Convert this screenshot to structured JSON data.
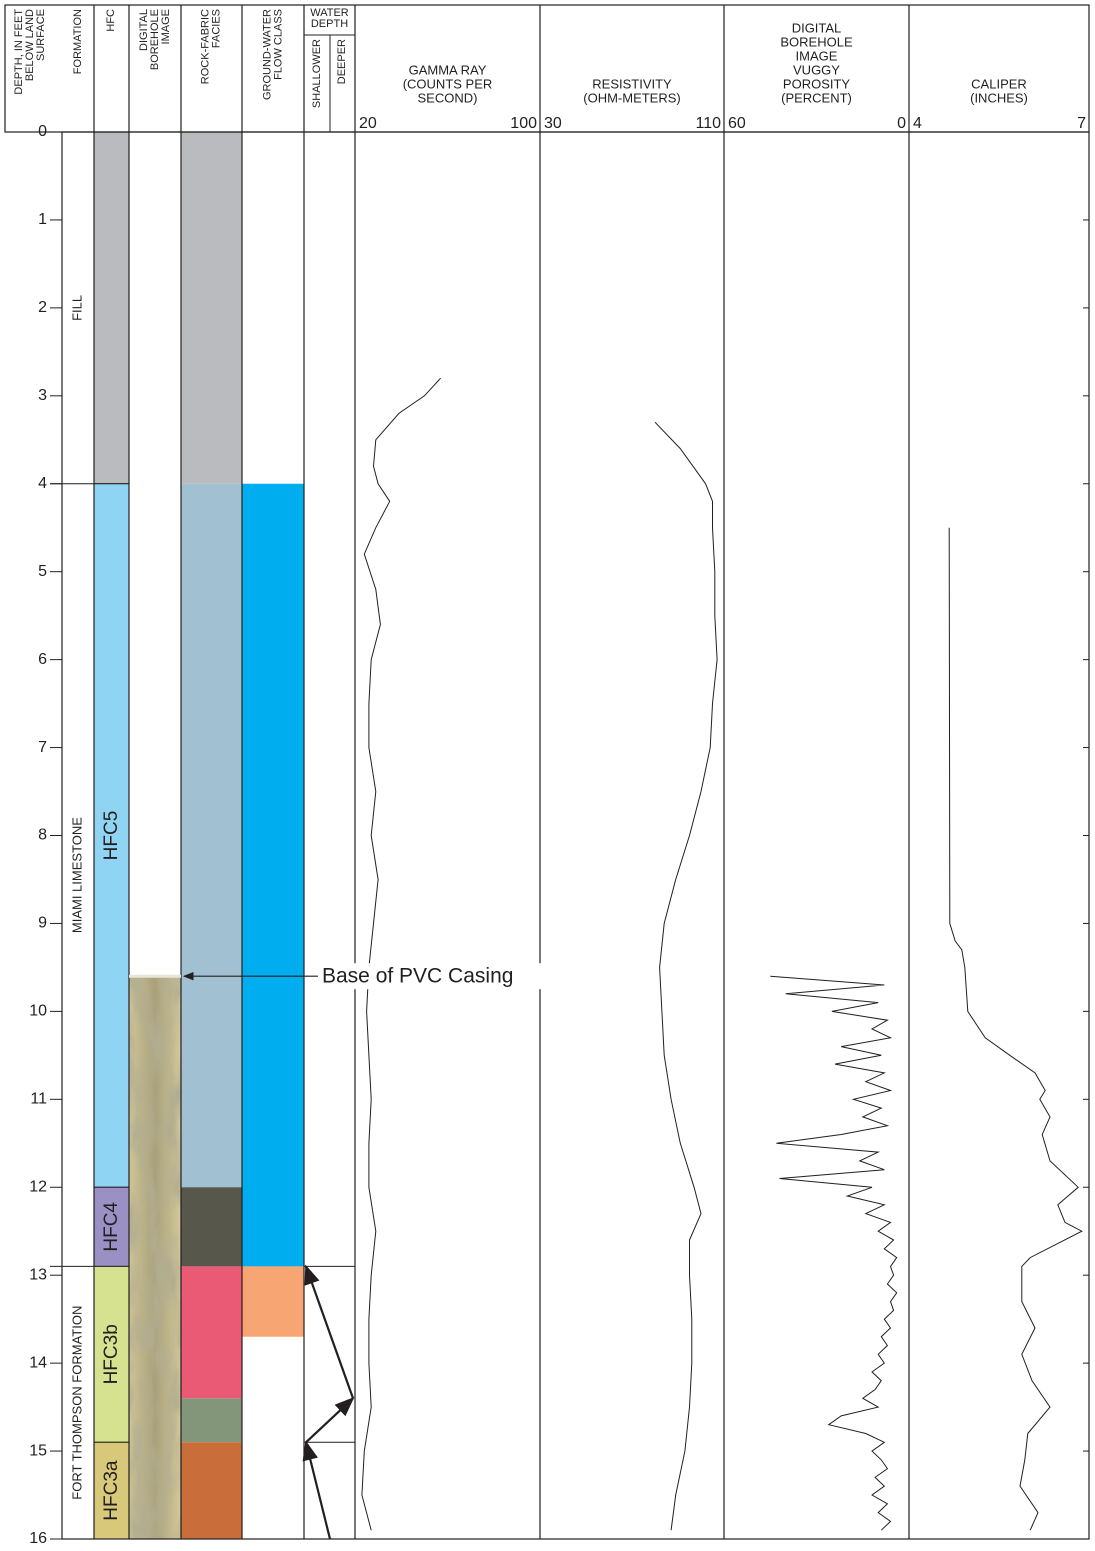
{
  "headers": {
    "depth": [
      "DEPTH, IN FEET",
      "BELOW LAND",
      "SURFACE"
    ],
    "formation": [
      "FORMATION"
    ],
    "hfc": [
      "HFC"
    ],
    "image": [
      "DIGITAL",
      "BOREHOLE",
      "IMAGE"
    ],
    "facies": [
      "ROCK-FABRIC",
      "FACIES"
    ],
    "flow_class": [
      "GROUND-WATER",
      "FLOW CLASS"
    ],
    "water_depth": [
      "WATER",
      "DEPTH"
    ],
    "shallower": "SHALLOWER",
    "deeper": "DEEPER"
  },
  "depth_axis": {
    "ylim": [
      0,
      16
    ],
    "yticks": [
      0,
      1,
      2,
      3,
      4,
      5,
      6,
      7,
      8,
      9,
      10,
      11,
      12,
      13,
      14,
      15,
      16
    ]
  },
  "columns": {
    "formation": [
      {
        "label": "FILL",
        "top": 0,
        "bottom": 4
      },
      {
        "label": "MIAMI LIMESTONE",
        "top": 4,
        "bottom": 12.9
      },
      {
        "label": "FORT THOMPSON FORMATION",
        "top": 12.9,
        "bottom": 16
      }
    ],
    "hfc": [
      {
        "color": "#b9bbbf",
        "top": 0,
        "bottom": 4
      },
      {
        "label": "HFC5",
        "color": "#8fd5f3",
        "top": 4,
        "bottom": 12
      },
      {
        "label": "HFC4",
        "color": "#9b90c4",
        "top": 12,
        "bottom": 12.9
      },
      {
        "label": "HFC3b",
        "color": "#d6e290",
        "top": 12.9,
        "bottom": 14.9
      },
      {
        "label": "HFC3a",
        "color": "#d8c97a",
        "top": 14.9,
        "bottom": 16
      }
    ],
    "borehole_image": {
      "top": 9.6,
      "bottom": 16
    },
    "facies": [
      {
        "color": "#b9bbbf",
        "top": 0,
        "bottom": 4
      },
      {
        "color": "#a1c0d2",
        "top": 4,
        "bottom": 12
      },
      {
        "color": "#57574b",
        "top": 12,
        "bottom": 12.9
      },
      {
        "color": "#ea5a74",
        "top": 12.9,
        "bottom": 14.4
      },
      {
        "color": "#84967a",
        "top": 14.4,
        "bottom": 14.9
      },
      {
        "color": "#c96d3a",
        "top": 14.9,
        "bottom": 16
      }
    ],
    "flow_class": [
      {
        "color": "#00aeef",
        "top": 4,
        "bottom": 12.9
      },
      {
        "color": "#f7a673",
        "top": 12.9,
        "bottom": 13.7
      }
    ],
    "water_depth": {
      "lines": [
        12.9,
        14.9
      ],
      "arrows": [
        16,
        14.9,
        14.4,
        12.9
      ]
    }
  },
  "annotation": {
    "text": "Base of PVC Casing",
    "depth": 9.6
  },
  "chart_data": [
    {
      "type": "line",
      "title": [
        "GAMMA RAY",
        "(COUNTS PER",
        "SECOND)"
      ],
      "xlim": [
        20,
        100
      ],
      "xticks": [
        20,
        100
      ],
      "color": "#231f20",
      "depth": [
        2.8,
        3.0,
        3.2,
        3.5,
        3.8,
        4.0,
        4.2,
        4.5,
        4.8,
        5.2,
        5.6,
        6.0,
        6.5,
        7.0,
        7.5,
        8.0,
        8.5,
        9.0,
        9.5,
        10.0,
        10.5,
        11.0,
        11.5,
        12.0,
        12.5,
        13.0,
        13.5,
        14.0,
        14.5,
        15.0,
        15.5,
        15.9
      ],
      "values": [
        57,
        50,
        39,
        29,
        28,
        30,
        35,
        29,
        24,
        29,
        31,
        27,
        26,
        26,
        29,
        27,
        30,
        28,
        26,
        25,
        26,
        27,
        26,
        26,
        29,
        27,
        26,
        26,
        27,
        24,
        23,
        27
      ]
    },
    {
      "type": "line",
      "title": [
        "RESISTIVITY",
        "(OHM-METERS)"
      ],
      "xlim": [
        30,
        110
      ],
      "xticks": [
        30,
        110
      ],
      "color": "#231f20",
      "depth": [
        3.3,
        3.6,
        4.0,
        4.2,
        4.5,
        5.0,
        5.5,
        6.0,
        6.5,
        7.0,
        7.5,
        8.0,
        8.5,
        9.0,
        9.5,
        10.0,
        10.5,
        11.0,
        11.5,
        12.0,
        12.3,
        12.6,
        13.0,
        13.5,
        14.0,
        14.5,
        15.0,
        15.5,
        15.9
      ],
      "values": [
        80,
        91,
        102,
        105,
        105,
        106,
        106,
        107,
        105,
        104,
        100,
        95,
        89,
        84,
        82,
        83,
        84,
        87,
        91,
        97,
        100,
        95,
        95,
        96,
        96,
        95,
        93,
        89,
        87
      ]
    },
    {
      "type": "line",
      "title": [
        "DIGITAL",
        "BOREHOLE",
        "IMAGE",
        "VUGGY",
        "POROSITY",
        "(PERCENT)"
      ],
      "xlim": [
        60,
        0
      ],
      "xticks": [
        60,
        0
      ],
      "color": "#231f20",
      "depth": [
        9.6,
        9.7,
        9.8,
        9.9,
        10.0,
        10.1,
        10.2,
        10.3,
        10.4,
        10.5,
        10.6,
        10.7,
        10.8,
        10.9,
        11.0,
        11.1,
        11.2,
        11.3,
        11.4,
        11.5,
        11.6,
        11.7,
        11.8,
        11.9,
        12.0,
        12.1,
        12.2,
        12.3,
        12.4,
        12.5,
        12.6,
        12.7,
        12.8,
        12.9,
        13.0,
        13.1,
        13.2,
        13.3,
        13.4,
        13.5,
        13.6,
        13.7,
        13.8,
        13.9,
        14.0,
        14.1,
        14.2,
        14.3,
        14.4,
        14.5,
        14.6,
        14.7,
        14.8,
        14.9,
        15.0,
        15.1,
        15.2,
        15.3,
        15.4,
        15.5,
        15.6,
        15.7,
        15.8,
        15.9
      ],
      "values": [
        45,
        8,
        40,
        10,
        25,
        7,
        12,
        6,
        22,
        9,
        24,
        8,
        14,
        6,
        18,
        9,
        15,
        7,
        22,
        43,
        10,
        16,
        8,
        42,
        12,
        20,
        8,
        14,
        6,
        10,
        5,
        8,
        4,
        6,
        5,
        7,
        4,
        6,
        5,
        8,
        6,
        9,
        7,
        10,
        8,
        12,
        9,
        11,
        15,
        10,
        22,
        26,
        14,
        8,
        12,
        9,
        7,
        11,
        8,
        12,
        7,
        10,
        6,
        9
      ]
    },
    {
      "type": "line",
      "title": [
        "CALIPER",
        "(INCHES)"
      ],
      "xlim": [
        4,
        7
      ],
      "xticks": [
        4,
        7
      ],
      "color": "#231f20",
      "depth": [
        4.5,
        9.0,
        9.2,
        9.3,
        9.5,
        10.0,
        10.3,
        10.5,
        10.7,
        10.9,
        11.0,
        11.2,
        11.4,
        11.7,
        12.0,
        12.2,
        12.4,
        12.5,
        12.8,
        12.9,
        13.3,
        13.6,
        13.9,
        14.2,
        14.5,
        14.8,
        15.1,
        15.4,
        15.7,
        15.9
      ],
      "values": [
        4.67,
        4.68,
        4.77,
        4.88,
        4.93,
        4.98,
        5.27,
        5.68,
        6.1,
        6.27,
        6.18,
        6.35,
        6.22,
        6.35,
        6.82,
        6.48,
        6.6,
        6.88,
        6.02,
        5.88,
        5.88,
        6.1,
        5.88,
        6.05,
        6.35,
        5.98,
        5.93,
        5.85,
        6.15,
        6.02
      ]
    }
  ]
}
